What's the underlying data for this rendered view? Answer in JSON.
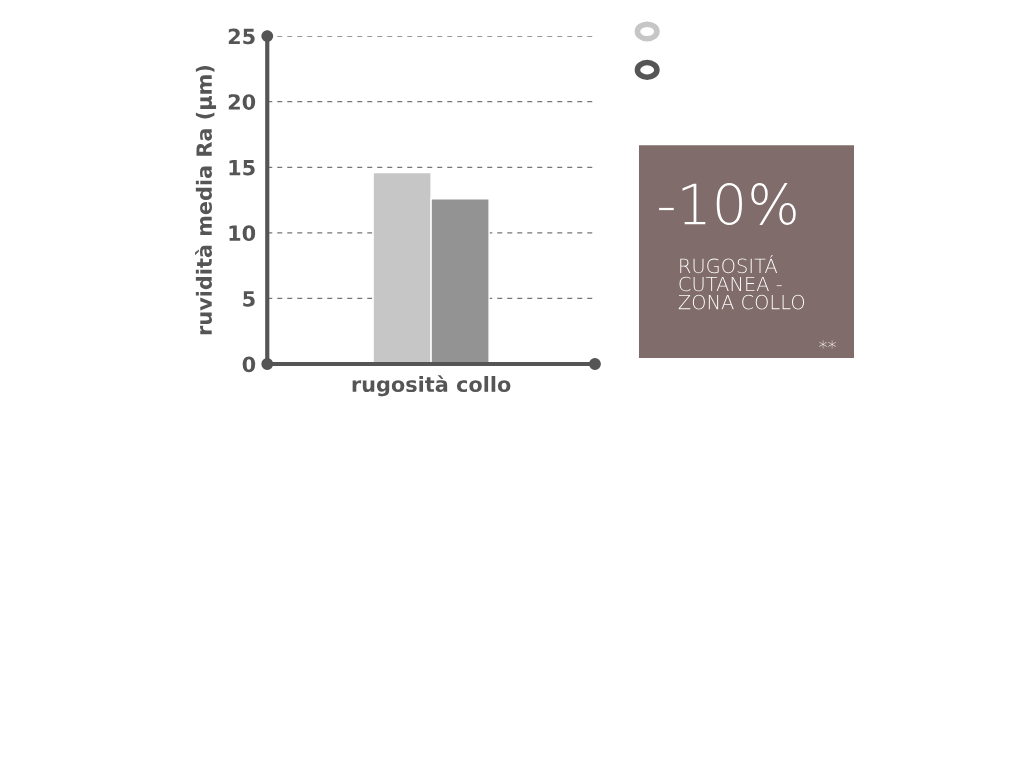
{
  "chart_data": {
    "type": "bar",
    "categories": [
      "rugosità collo"
    ],
    "series": [
      {
        "color": "#c6c6c6",
        "values": [
          14.6
        ]
      },
      {
        "color": "#939393",
        "values": [
          12.6
        ]
      }
    ],
    "ylabel": "ruvidità media Ra (µm)",
    "ylim": [
      0,
      25
    ],
    "yticks": [
      0,
      5,
      10,
      15,
      20,
      25
    ],
    "grid": "y",
    "annotations": [
      "-10%",
      "RUGOSITÁ\nCUTANEA -\nZONA COLLO",
      "**"
    ]
  }
}
